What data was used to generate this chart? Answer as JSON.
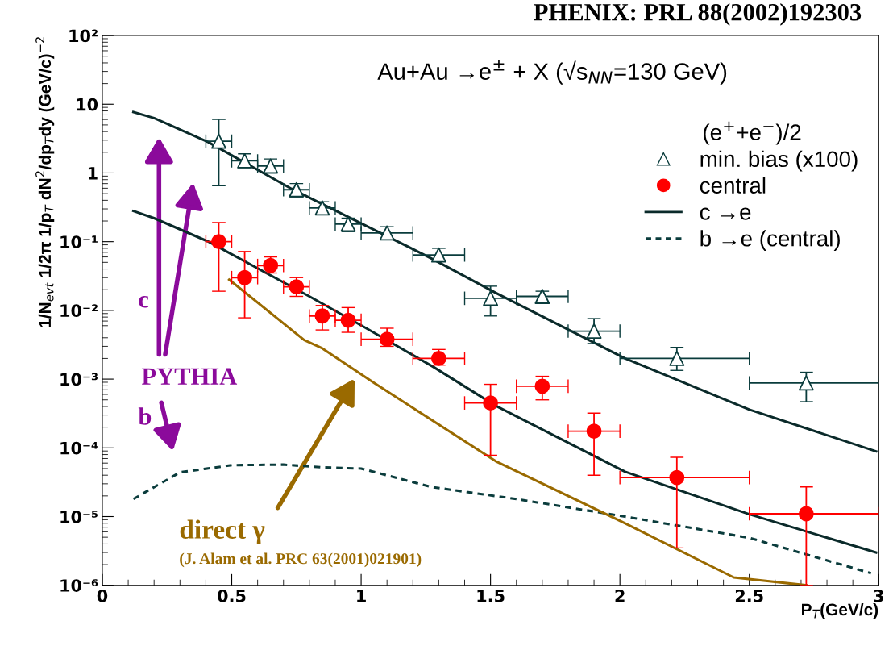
{
  "chart_data": {
    "type": "scatter",
    "title": "PHENIX: PRL 88(2002)192303",
    "subtitle": "Au+Au →e$^{±}$ + X (√s$_{NN}$=130 GeV)",
    "xlabel": "P$_{T}$(GeV/c)",
    "ylabel": "1/N$_{evt}$ 1/2π 1/p$_{T}$ dN$^{2}$/dp$_{T}$dy (GeV/c)$^{−2}$",
    "legend_title": "(e$^{+}$+e$^{−}$)/2",
    "log": "y",
    "grid": false,
    "legend": "top right",
    "xlim": [
      0,
      3
    ],
    "xticks": [
      0,
      0.5,
      1,
      1.5,
      2,
      2.5,
      3
    ],
    "ylim": [
      1e-06,
      100
    ],
    "yticks": [
      {
        "value": 1e-06,
        "label": "10⁻⁶"
      },
      {
        "value": 1e-05,
        "label": "10⁻⁵"
      },
      {
        "value": 0.0001,
        "label": "10⁻⁴"
      },
      {
        "value": 0.001,
        "label": "10⁻³"
      },
      {
        "value": 0.01,
        "label": "10⁻²"
      },
      {
        "value": 0.1,
        "label": "10⁻¹"
      },
      1,
      10,
      {
        "value": 100,
        "label": "10²"
      }
    ],
    "series": [
      {
        "name": "min. bias (x100)",
        "marker": "triangle",
        "color": "#0a3c3c",
        "x": [
          0.45,
          0.55,
          0.65,
          0.75,
          0.85,
          0.95,
          1.1,
          1.3,
          1.5,
          1.7,
          1.9,
          2.22,
          2.72
        ],
        "values": [
          2.9,
          1.5,
          1.26,
          0.57,
          0.31,
          0.18,
          0.134,
          0.064,
          0.015,
          0.016,
          0.005,
          0.002,
          0.00088
        ],
        "errors": [
          [
            0.65,
            6
          ],
          [
            1.2,
            1.9
          ],
          [
            1.0,
            1.6
          ],
          [
            0.45,
            0.7
          ],
          [
            0.25,
            0.38
          ],
          [
            0.14,
            0.22
          ],
          [
            0.11,
            0.165
          ],
          [
            0.052,
            0.08
          ],
          [
            0.0083,
            0.0225
          ],
          [
            0.013,
            0.019
          ],
          [
            0.0033,
            0.0076
          ],
          [
            0.00134,
            0.0029
          ],
          [
            0.00047,
            0.00126
          ]
        ],
        "xerrors": [
          [
            0.4,
            0.5
          ],
          [
            0.5,
            0.6
          ],
          [
            0.6,
            0.7
          ],
          [
            0.7,
            0.8
          ],
          [
            0.8,
            0.9
          ],
          [
            0.9,
            1.0
          ],
          [
            1.0,
            1.2
          ],
          [
            1.2,
            1.4
          ],
          [
            1.4,
            1.6
          ],
          [
            1.6,
            1.8
          ],
          [
            1.8,
            2.0
          ],
          [
            2.0,
            2.5
          ],
          [
            2.5,
            3.0
          ]
        ]
      },
      {
        "name": "central",
        "marker": "circle",
        "color": "#ff0000",
        "x": [
          0.45,
          0.55,
          0.65,
          0.75,
          0.85,
          0.95,
          1.1,
          1.3,
          1.5,
          1.7,
          1.9,
          2.22,
          2.72
        ],
        "values": [
          0.1,
          0.03,
          0.045,
          0.022,
          0.0083,
          0.0072,
          0.0038,
          0.002,
          0.00045,
          0.00079,
          0.000175,
          3.7e-05,
          1.1e-05
        ],
        "errors": [
          [
            0.019,
            0.19
          ],
          [
            0.0078,
            0.072
          ],
          [
            0.035,
            0.06
          ],
          [
            0.016,
            0.03
          ],
          [
            0.0052,
            0.0118
          ],
          [
            0.0048,
            0.011
          ],
          [
            0.003,
            0.0055
          ],
          [
            0.0016,
            0.0027
          ],
          [
            7.8e-05,
            0.00084
          ],
          [
            0.0005,
            0.0011
          ],
          [
            4e-05,
            0.00032
          ],
          [
            3.5e-06,
            7.3e-05
          ],
          [
            1e-06,
            2.7e-05
          ]
        ],
        "xerrors": [
          [
            0.4,
            0.5
          ],
          [
            0.5,
            0.6
          ],
          [
            0.6,
            0.7
          ],
          [
            0.7,
            0.8
          ],
          [
            0.8,
            0.9
          ],
          [
            0.9,
            1.0
          ],
          [
            1.0,
            1.2
          ],
          [
            1.2,
            1.4
          ],
          [
            1.4,
            1.6
          ],
          [
            1.6,
            1.8
          ],
          [
            1.8,
            2.0
          ],
          [
            2.0,
            2.5
          ],
          [
            2.5,
            3.0
          ]
        ]
      },
      {
        "name": "c →e",
        "type": "line",
        "line_style": "solid",
        "color": "#0a2a2a",
        "x": [
          0.12,
          0.2,
          0.41,
          0.73,
          1.02,
          1.28,
          1.52,
          2.02,
          2.5,
          2.99
        ],
        "values": [
          7.7,
          6.3,
          2.8,
          0.59,
          0.17,
          0.055,
          0.018,
          0.002,
          0.00036,
          8.9e-05
        ]
      },
      {
        "type": "line",
        "line_style": "solid",
        "color": "#0a2a2a",
        "x": [
          0.12,
          0.2,
          0.41,
          0.8,
          1.02,
          1.28,
          1.52,
          2.02,
          2.5,
          2.99
        ],
        "values": [
          0.28,
          0.22,
          0.1,
          0.016,
          0.0055,
          0.0015,
          0.00041,
          4.5e-05,
          1.08e-05,
          3e-06
        ]
      },
      {
        "name": "b →e (central)",
        "type": "line",
        "line_style": "dashed",
        "color": "#0a3c3c",
        "x": [
          0.12,
          0.3,
          0.5,
          0.7,
          0.85,
          1.0,
          1.27,
          1.6,
          2.02,
          2.5,
          2.97
        ],
        "values": [
          1.8e-05,
          4.4e-05,
          5.6e-05,
          5.7e-05,
          5.2e-05,
          5e-05,
          2.7e-05,
          1.8e-05,
          1e-05,
          4.9e-06,
          1.5e-06
        ]
      },
      {
        "type": "line",
        "line_style": "solid",
        "color": "#9a6a00",
        "x": [
          0.49,
          0.78,
          0.85,
          1.05,
          1.52,
          2.02,
          2.44,
          2.72
        ],
        "values": [
          0.028,
          0.0037,
          0.0028,
          0.00088,
          6.4e-05,
          8e-06,
          1.3e-06,
          1e-06
        ]
      }
    ],
    "annotations": [
      "c",
      "PYTHIA",
      "b",
      "direct γ",
      "(J. Alam et al. PRC 63(2001)021901)"
    ]
  }
}
